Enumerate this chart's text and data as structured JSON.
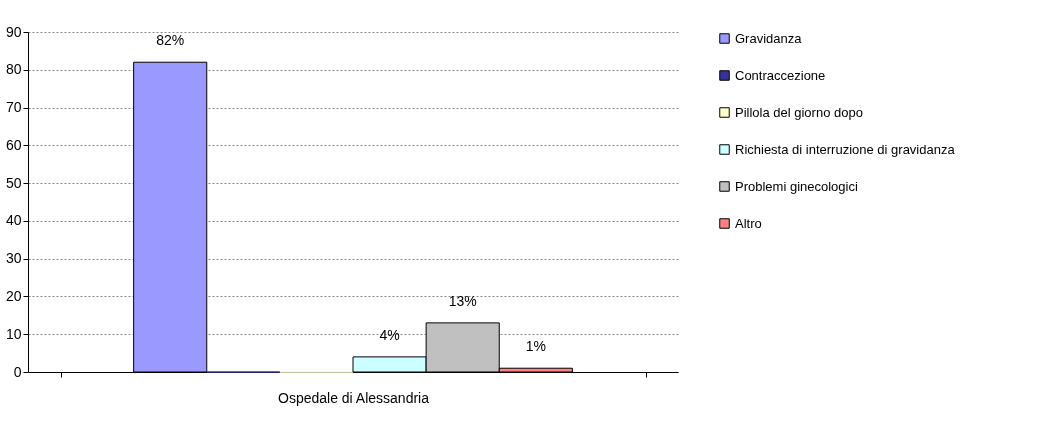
{
  "chart_data": {
    "type": "bar",
    "categories": [
      "Ospedale di Alessandria"
    ],
    "series": [
      {
        "name": "Gravidanza",
        "color": "#9999ff",
        "values": [
          82
        ]
      },
      {
        "name": "Contraccezione",
        "color": "#333399",
        "values": [
          0
        ]
      },
      {
        "name": "Pillola del giorno dopo",
        "color": "#ffffcc",
        "values": [
          0
        ]
      },
      {
        "name": "Richiesta di interruzione di gravidanza",
        "color": "#ccffff",
        "values": [
          4
        ]
      },
      {
        "name": "Problemi ginecologici",
        "color": "#c0c0c0",
        "values": [
          13
        ]
      },
      {
        "name": "Altro",
        "color": "#ff8080",
        "values": [
          1
        ]
      }
    ],
    "value_labels": [
      [
        "82%"
      ],
      [
        null
      ],
      [
        null
      ],
      [
        "4%"
      ],
      [
        "13%"
      ],
      [
        "1%"
      ]
    ],
    "ylim": [
      0,
      90
    ],
    "yticks": [
      0,
      10,
      20,
      30,
      40,
      50,
      60,
      70,
      80,
      90
    ],
    "grid": "y",
    "legend": "right"
  }
}
